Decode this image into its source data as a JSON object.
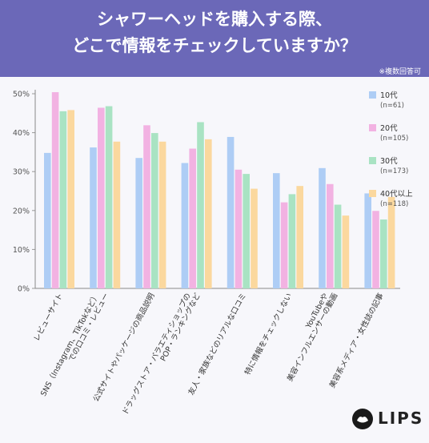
{
  "header": {
    "title_line1": "シャワーヘッドを購入する際、",
    "title_line2": "どこで情報をチェックしていますか？",
    "note": "※複数回答可"
  },
  "brand": {
    "logo_text": "LIPS"
  },
  "colors": {
    "background": "#6b68b8",
    "panel": "#f7f7fb",
    "series": [
      "#aecdf5",
      "#f2b2e2",
      "#a9e3c3",
      "#fbd89e"
    ]
  },
  "chart_data": {
    "type": "bar",
    "title": "シャワーヘッドを購入する際、どこで情報をチェックしていますか？",
    "xlabel": "",
    "ylabel": "",
    "ylim": [
      0,
      50
    ],
    "yticks": [
      0,
      10,
      20,
      30,
      40,
      50
    ],
    "ytick_labels": [
      "0%",
      "10%",
      "20%",
      "30%",
      "40%",
      "50%"
    ],
    "grid": false,
    "legend_position": "right",
    "categories": [
      [
        "レビューサイト"
      ],
      [
        "SNS（Instagram、TikTokなど）",
        "での口コミ・レビュー"
      ],
      [
        "公式サイトやパッケージの商品説明"
      ],
      [
        "ドラッグストア・バラエティショップの",
        "POP・ランキングなど"
      ],
      [
        "友人・家族などのリアルな口コミ"
      ],
      [
        "特に情報をチェックしない"
      ],
      [
        "YouTubeや",
        "美容インフルエンサーの動画"
      ],
      [
        "美容系メディア・女性誌の記事"
      ]
    ],
    "series": [
      {
        "name": "10代",
        "n": "(n=61)",
        "values": [
          34.8,
          36.2,
          33.5,
          32.2,
          38.9,
          29.6,
          30.9,
          24.4
        ]
      },
      {
        "name": "20代",
        "n": "(n=105)",
        "values": [
          50.4,
          46.4,
          41.9,
          35.9,
          30.5,
          22.1,
          26.8,
          19.9
        ]
      },
      {
        "name": "30代",
        "n": "(n=173)",
        "values": [
          45.5,
          46.8,
          39.9,
          42.7,
          29.4,
          24.2,
          21.5,
          17.7
        ]
      },
      {
        "name": "40代以上",
        "n": "(n=118)",
        "values": [
          45.8,
          37.7,
          37.7,
          38.3,
          25.6,
          26.3,
          18.7,
          23.5
        ]
      }
    ]
  }
}
